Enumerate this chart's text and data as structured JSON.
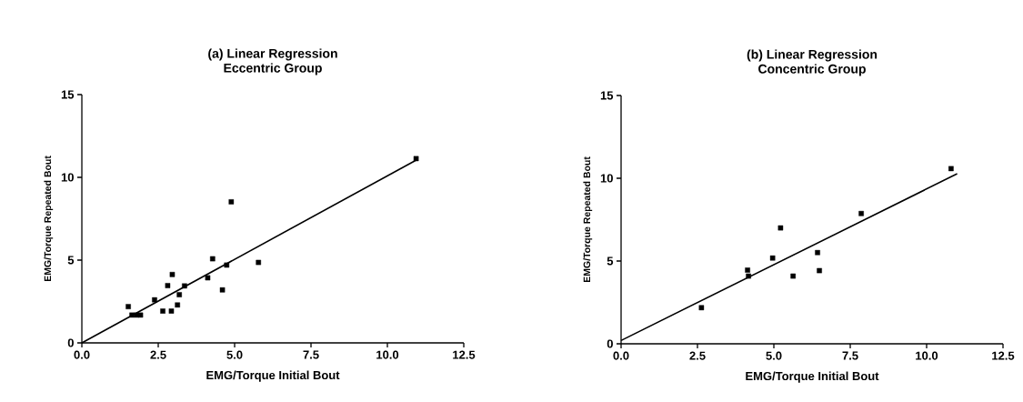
{
  "chart_data": [
    {
      "type": "scatter",
      "title": "(a) Linear Regression",
      "subtitle": "Eccentric Group",
      "xlabel": "EMG/Torque Initial Bout",
      "ylabel": "EMG/Torque Repeated Bout",
      "xlim": [
        0,
        12.5
      ],
      "ylim": [
        0,
        15
      ],
      "xticks": [
        {
          "value": 0,
          "label": "0.0"
        },
        2.5,
        {
          "value": 5,
          "label": "5.0"
        },
        7.5,
        {
          "value": 10,
          "label": "10.0"
        },
        12.5
      ],
      "yticks": [
        0,
        5,
        10,
        15
      ],
      "series": [
        {
          "color": "#000000",
          "marker": "square",
          "x": [
            1.52,
            1.64,
            1.79,
            1.92,
            2.38,
            2.65,
            2.81,
            2.93,
            2.96,
            3.13,
            3.19,
            3.36,
            4.12,
            4.28,
            4.6,
            4.74,
            4.89,
            5.78,
            10.94
          ],
          "values": [
            2.19,
            1.68,
            1.68,
            1.68,
            2.6,
            1.92,
            3.46,
            1.92,
            4.13,
            2.29,
            2.91,
            3.44,
            3.93,
            5.08,
            3.2,
            4.7,
            8.52,
            4.86,
            11.13
          ]
        },
        {
          "type": "line",
          "color": "#000000",
          "marker": "none",
          "x": [
            0,
            11.0
          ],
          "values": [
            0,
            11.1
          ]
        }
      ]
    },
    {
      "type": "scatter",
      "title": "(b) Linear Regression",
      "subtitle": "Concentric Group",
      "xlabel": "EMG/Torque Initial Bout",
      "ylabel": "EMG/Torque Repeated Bout",
      "xlim": [
        0,
        12.5
      ],
      "ylim": [
        0,
        15
      ],
      "xticks": [
        {
          "value": 0,
          "label": "0.0"
        },
        2.5,
        {
          "value": 5,
          "label": "5.0"
        },
        7.5,
        {
          "value": 10,
          "label": "10.0"
        },
        12.5
      ],
      "yticks": [
        0,
        5,
        10,
        15
      ],
      "series": [
        {
          "color": "#000000",
          "marker": "square",
          "x": [
            2.63,
            4.14,
            4.17,
            4.96,
            5.22,
            5.63,
            6.43,
            6.49,
            7.86,
            10.8
          ],
          "values": [
            2.18,
            4.45,
            4.09,
            5.18,
            7.0,
            4.09,
            5.51,
            4.42,
            7.87,
            10.58
          ]
        },
        {
          "type": "line",
          "color": "#000000",
          "marker": "none",
          "x": [
            0,
            11.0
          ],
          "values": [
            0.2,
            10.27
          ]
        }
      ]
    }
  ]
}
